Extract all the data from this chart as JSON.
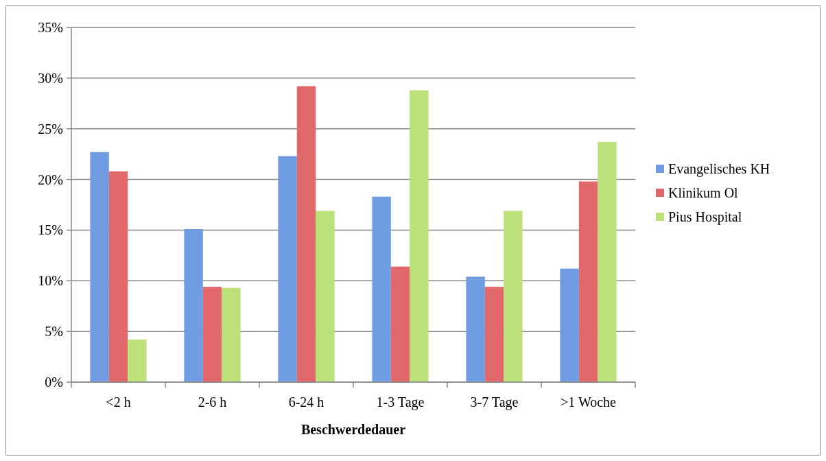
{
  "chart_data": {
    "type": "bar",
    "xlabel": "Beschwerdedauer",
    "categories": [
      "<2 h",
      "2-6 h",
      "6-24 h",
      "1-3 Tage",
      "3-7 Tage",
      ">1 Woche"
    ],
    "series": [
      {
        "name": "Evangelisches KH",
        "color": "#6f9ce0",
        "values": [
          22.7,
          15.1,
          22.3,
          18.3,
          10.4,
          11.2
        ]
      },
      {
        "name": "Klinikum Ol",
        "color": "#e0676a",
        "values": [
          20.8,
          9.4,
          29.2,
          11.4,
          9.4,
          19.8
        ]
      },
      {
        "name": "Pius Hospital",
        "color": "#bce07a",
        "values": [
          4.2,
          9.3,
          16.9,
          28.8,
          16.9,
          23.7
        ]
      }
    ],
    "ylim": [
      0,
      35
    ],
    "yticks": [
      {
        "value": 0,
        "label": "0%"
      },
      {
        "value": 5,
        "label": "5%"
      },
      {
        "value": 10,
        "label": "10%"
      },
      {
        "value": 15,
        "label": "15%"
      },
      {
        "value": 20,
        "label": "20%"
      },
      {
        "value": 25,
        "label": "25%"
      },
      {
        "value": 30,
        "label": "30%"
      },
      {
        "value": 35,
        "label": "35%"
      }
    ],
    "grid": "y",
    "legend": "right"
  }
}
